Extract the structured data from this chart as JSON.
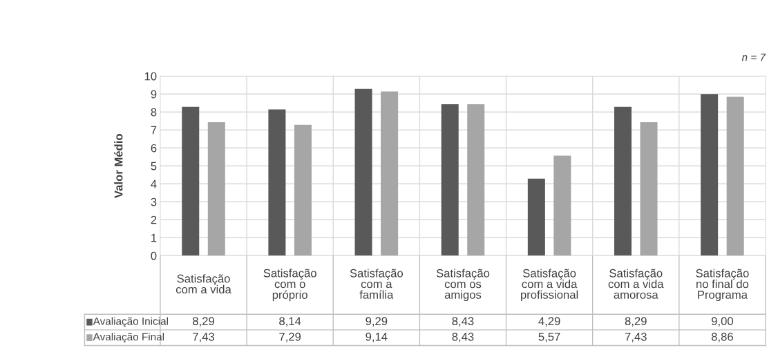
{
  "chart_data": {
    "type": "bar",
    "categories": [
      "Satisfação com a vida",
      "Satisfação com o próprio",
      "Satisfação com a família",
      "Satisfação com os amigos",
      "Satisfação com a vida profissional",
      "Satisfação com a vida amorosa",
      "Satisfação no final do Programa"
    ],
    "series": [
      {
        "name": "Avaliação Inicial",
        "color": "#595959",
        "values": [
          8.29,
          8.14,
          9.29,
          8.43,
          4.29,
          8.29,
          9.0
        ],
        "value_labels": [
          "8,29",
          "8,14",
          "9,29",
          "8,43",
          "4,29",
          "8,29",
          "9,00"
        ]
      },
      {
        "name": "Avaliação Final",
        "color": "#a6a6a6",
        "values": [
          7.43,
          7.29,
          9.14,
          8.43,
          5.57,
          7.43,
          8.86
        ],
        "value_labels": [
          "7,43",
          "7,29",
          "9,14",
          "8,43",
          "5,57",
          "7,43",
          "8,86"
        ]
      }
    ],
    "ylabel": "Valor Médio",
    "ylim": [
      0,
      10
    ],
    "yticks": [
      0,
      1,
      2,
      3,
      4,
      5,
      6,
      7,
      8,
      9,
      10
    ],
    "grid": true,
    "legend": "bottom",
    "annotations": [
      "n = 7"
    ]
  }
}
